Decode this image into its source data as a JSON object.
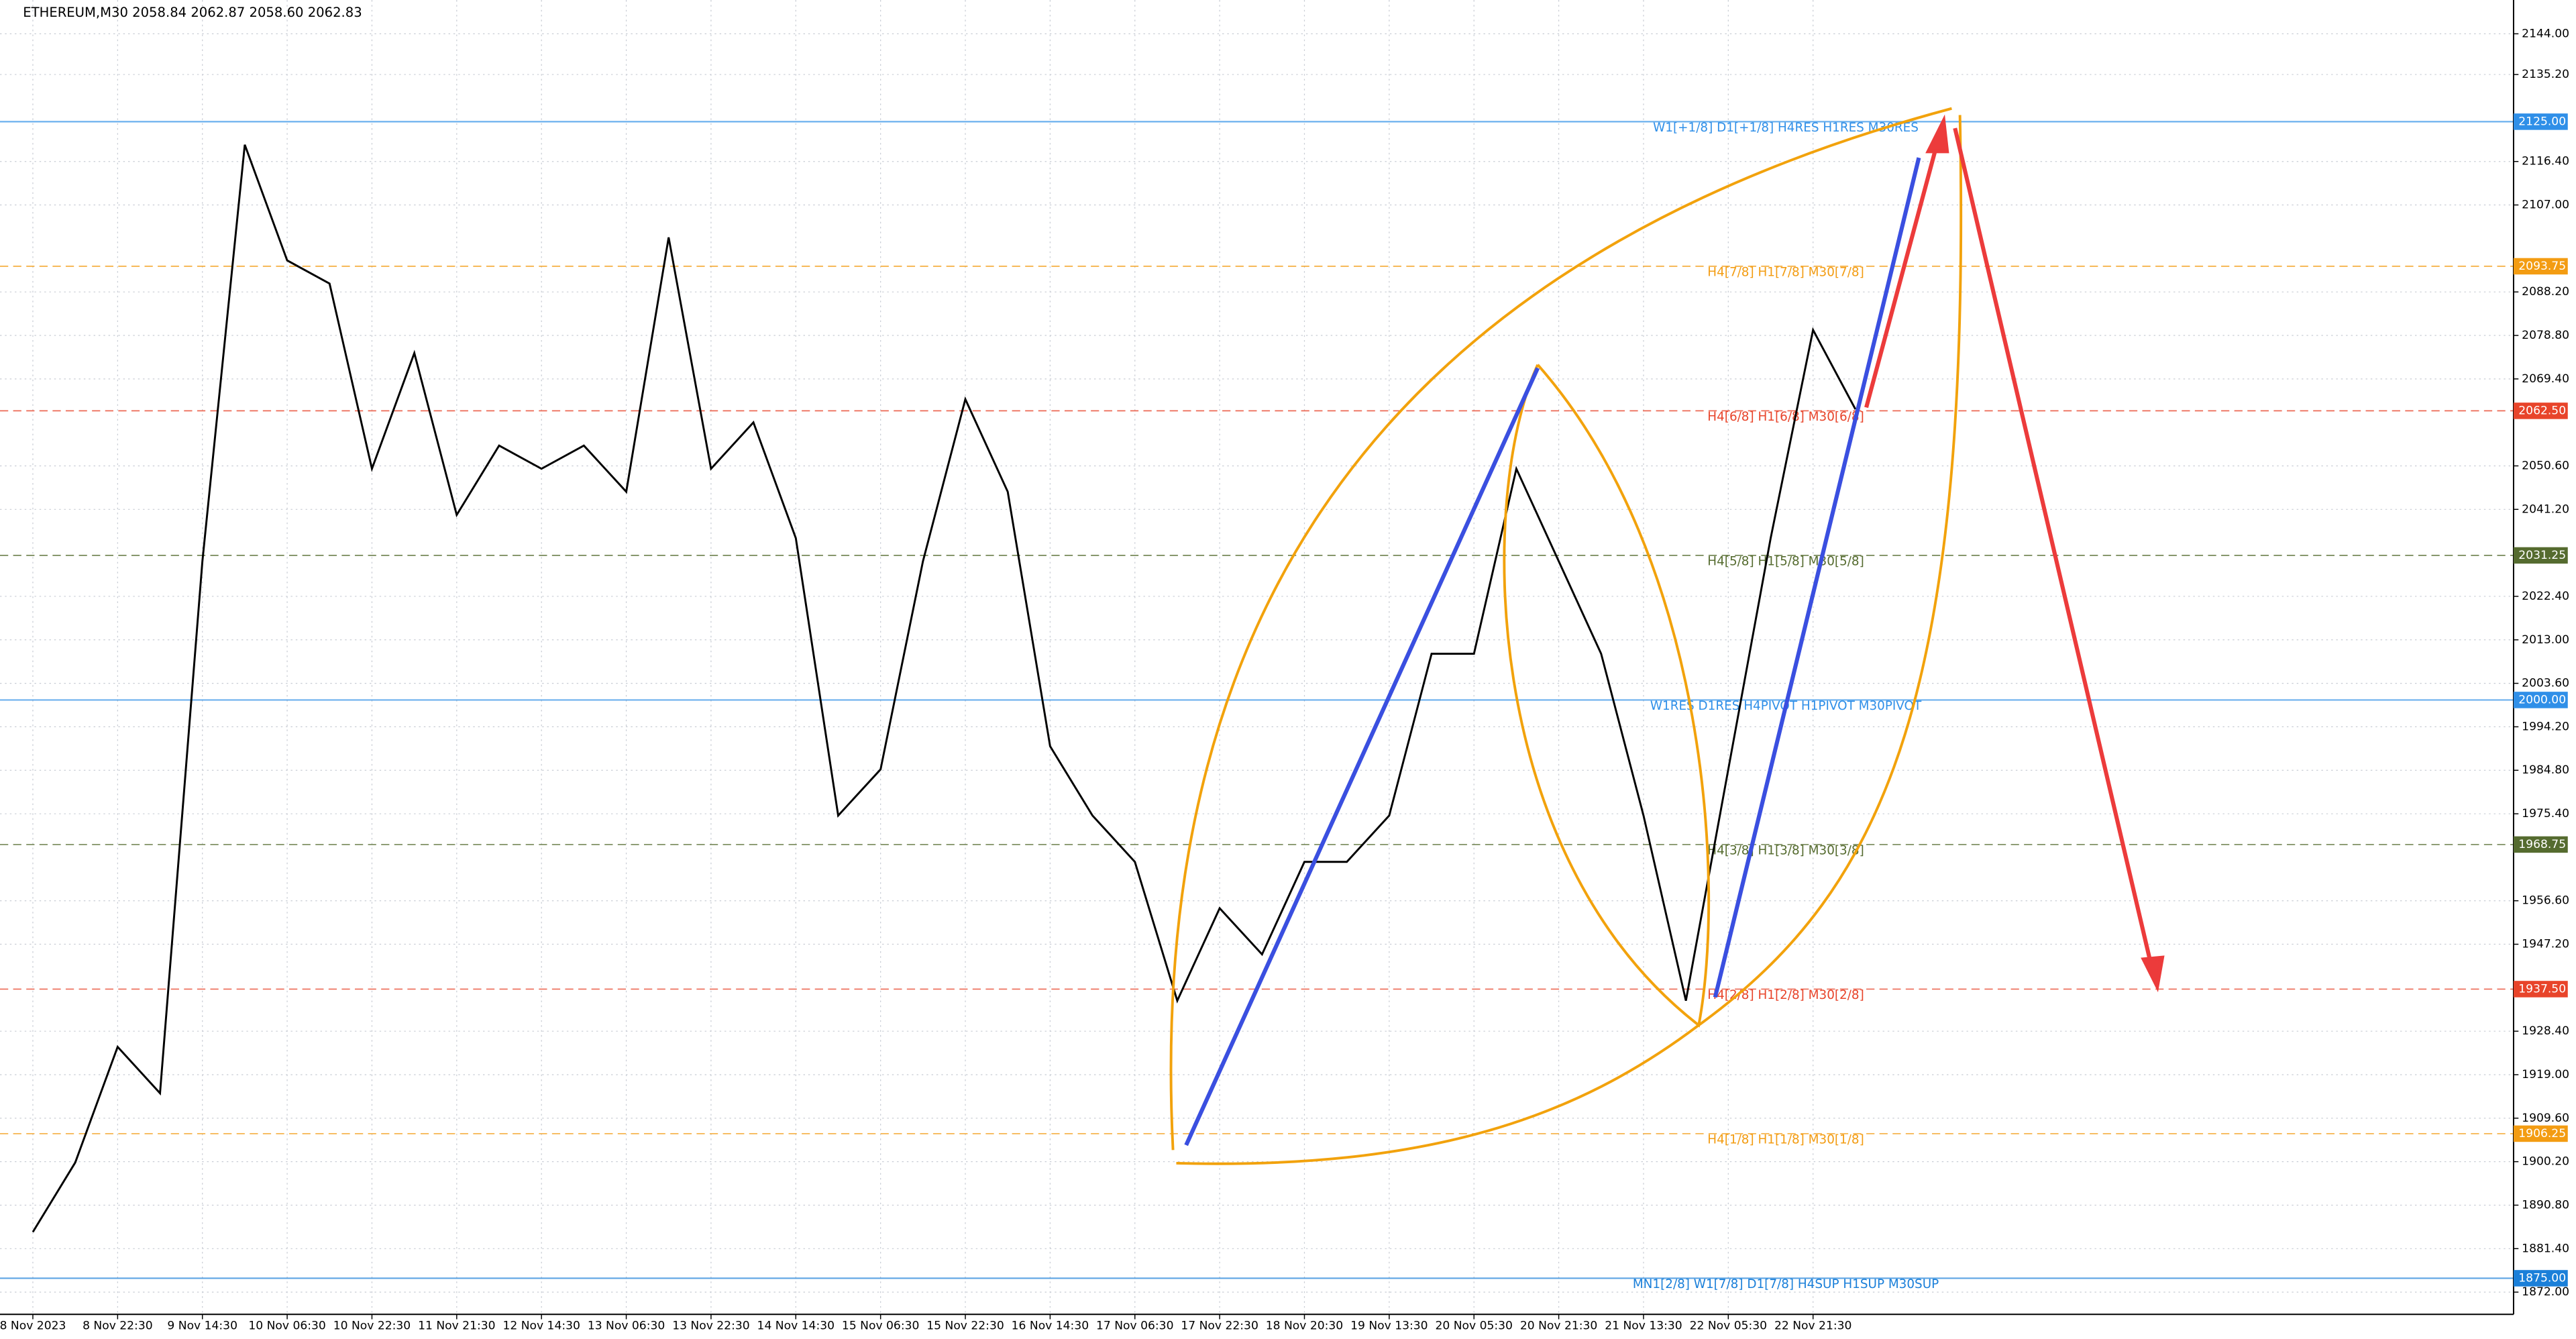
{
  "chart_data": {
    "type": "line",
    "title": "ETHEREUM,M30  2058.84 2062.87 2058.60 2062.83",
    "categories": [
      "8 Nov 2023",
      null,
      "8 Nov 22:30",
      null,
      "9 Nov 14:30",
      null,
      "10 Nov 06:30",
      null,
      "10 Nov 22:30",
      null,
      "11 Nov 21:30",
      null,
      "12 Nov 14:30",
      null,
      "13 Nov 06:30",
      null,
      "13 Nov 22:30",
      null,
      "14 Nov 14:30",
      null,
      "15 Nov 06:30",
      null,
      "15 Nov 22:30",
      null,
      "16 Nov 14:30",
      null,
      "17 Nov 06:30",
      null,
      "17 Nov 22:30",
      null,
      "18 Nov 20:30",
      null,
      "19 Nov 13:30",
      null,
      "20 Nov 05:30",
      null,
      "20 Nov 21:30",
      null,
      "21 Nov 13:30",
      null,
      "22 Nov 05:30",
      null,
      "22 Nov 21:30",
      null
    ],
    "values": [
      1885,
      1900,
      1925,
      1915,
      2030,
      2120,
      2095,
      2090,
      2050,
      2075,
      2040,
      2055,
      2050,
      2055,
      2045,
      2100,
      2050,
      2060,
      2035,
      1975,
      1985,
      2030,
      2065,
      2045,
      1990,
      1975,
      1965,
      1935,
      1955,
      1945,
      1965,
      1965,
      1975,
      2010,
      2010,
      2050,
      2030,
      2010,
      1975,
      1935,
      1985,
      2035,
      2080,
      2062.83
    ],
    "color": "#000000",
    "ylim": [
      1867.2,
      2151.3
    ],
    "yticks": [
      {
        "value": 2144,
        "label": "2144.00"
      },
      {
        "value": 2135.2,
        "label": "2135.20"
      },
      {
        "value": 2116.4,
        "label": "2116.40"
      },
      {
        "value": 2107,
        "label": "2107.00"
      },
      {
        "value": 2088.2,
        "label": "2088.20"
      },
      {
        "value": 2078.8,
        "label": "2078.80"
      },
      {
        "value": 2069.4,
        "label": "2069.40"
      },
      {
        "value": 2050.6,
        "label": "2050.60"
      },
      {
        "value": 2041.2,
        "label": "2041.20"
      },
      {
        "value": 2022.4,
        "label": "2022.40"
      },
      {
        "value": 2013,
        "label": "2013.00"
      },
      {
        "value": 2003.6,
        "label": "2003.60"
      },
      {
        "value": 1994.2,
        "label": "1994.20"
      },
      {
        "value": 1984.8,
        "label": "1984.80"
      },
      {
        "value": 1975.4,
        "label": "1975.40"
      },
      {
        "value": 1956.6,
        "label": "1956.60"
      },
      {
        "value": 1947.2,
        "label": "1947.20"
      },
      {
        "value": 1928.4,
        "label": "1928.40"
      },
      {
        "value": 1919,
        "label": "1919.00"
      },
      {
        "value": 1909.6,
        "label": "1909.60"
      },
      {
        "value": 1900.2,
        "label": "1900.20"
      },
      {
        "value": 1890.8,
        "label": "1890.80"
      },
      {
        "value": 1881.4,
        "label": "1881.40"
      },
      {
        "value": 1872,
        "label": "1872.00"
      }
    ],
    "grid": true,
    "levels": [
      {
        "value": 2125,
        "label": "2125.00",
        "text": "W1[+1/8] D1[+1/8] H4RES H1RES M30RES",
        "color": "#2f8fe8",
        "dashed": false
      },
      {
        "value": 2093.75,
        "label": "2093.75",
        "text": "H4[7/8] H1[7/8] M30[7/8]",
        "color": "#f39c12",
        "dashed": true
      },
      {
        "value": 2062.5,
        "label": "2062.50",
        "text": "H4[6/8] H1[6/8] M30[6/8]",
        "color": "#e8442a",
        "dashed": true
      },
      {
        "value": 2031.25,
        "label": "2031.25",
        "text": "H4[5/8] H1[5/8] M30[5/8]",
        "color": "#556b2f",
        "dashed": true
      },
      {
        "value": 2000,
        "label": "2000.00",
        "text": "W1RES D1RES H4PIVOT H1PIVOT M30PIVOT",
        "color": "#2f8fe8",
        "dashed": false
      },
      {
        "value": 1968.75,
        "label": "1968.75",
        "text": "H4[3/8] H1[3/8] M30[3/8]",
        "color": "#556b2f",
        "dashed": true
      },
      {
        "value": 1937.5,
        "label": "1937.50",
        "text": "H4[2/8] H1[2/8] M30[2/8]",
        "color": "#e8442a",
        "dashed": true
      },
      {
        "value": 1906.25,
        "label": "1906.25",
        "text": "H4[1/8] H1[1/8] M30[1/8]",
        "color": "#f39c12",
        "dashed": true
      },
      {
        "value": 1875,
        "label": "1875.00",
        "text": "MN1[2/8] W1[7/8] D1[7/8] H4SUP H1SUP M30SUP",
        "color": "#1a7fd9",
        "dashed": false
      }
    ]
  }
}
